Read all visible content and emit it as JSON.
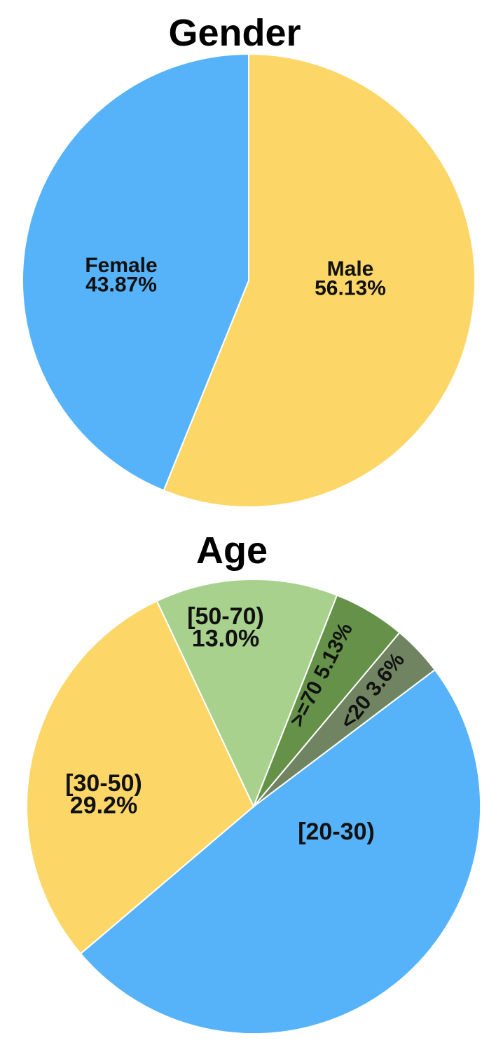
{
  "chart_data": [
    {
      "type": "pie",
      "title": "Gender",
      "slices": [
        {
          "name": "Male",
          "label": "Male",
          "value_label": "56.13%",
          "value": 56.13,
          "color": "#FCD768"
        },
        {
          "name": "Female",
          "label": "Female",
          "value_label": "43.87%",
          "value": 43.87,
          "color": "#56B3F9"
        }
      ],
      "legend": "none"
    },
    {
      "type": "pie",
      "title": "Age",
      "slices": [
        {
          "name": "[20-30)",
          "label": "[20-30)",
          "value_label": "",
          "value": 49.07,
          "color": "#56B3F9"
        },
        {
          "name": "[30-50)",
          "label": "[30-50)",
          "value_label": "29.2%",
          "value": 29.2,
          "color": "#FCD768"
        },
        {
          "name": "[50-70)",
          "label": "[50-70)",
          "value_label": "13.0%",
          "value": 13.0,
          "color": "#A8D18D"
        },
        {
          "name": ">=70",
          "label": ">=70",
          "value_label": "5.13%",
          "value": 5.13,
          "color": "#659248"
        },
        {
          "name": "<20",
          "label": "<20",
          "value_label": "3.6%",
          "value": 3.6,
          "color": "#708462"
        }
      ],
      "legend": "none"
    }
  ]
}
